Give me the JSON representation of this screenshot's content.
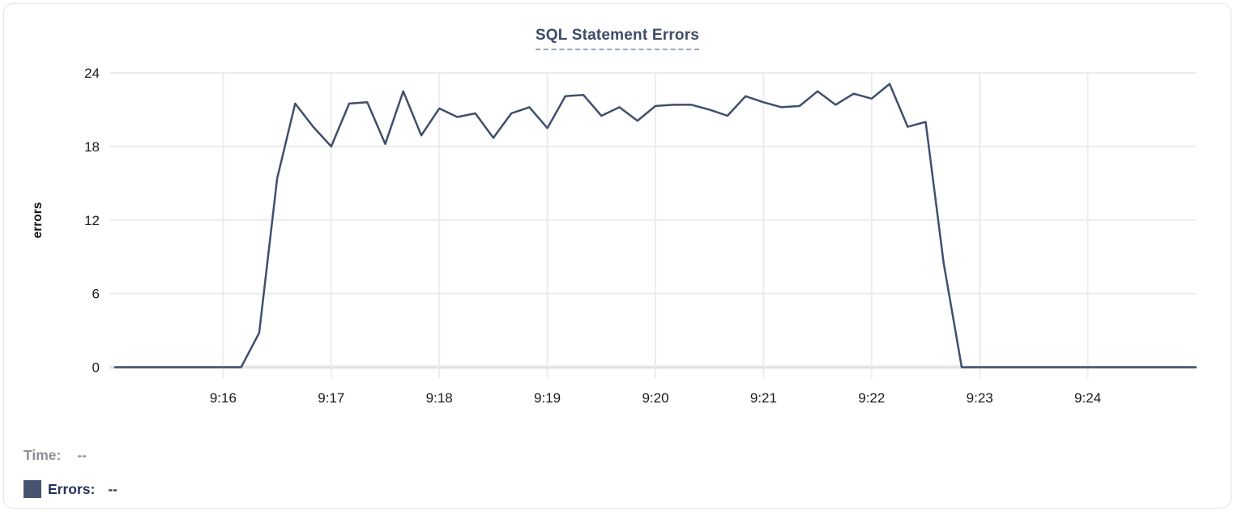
{
  "panel": {
    "background": "#ffffff",
    "border_color": "#e3e3e3"
  },
  "chart": {
    "title": "SQL Statement Errors",
    "colors": {
      "line": "#3f4f6e",
      "grid": "#ececec",
      "zero_axis": "#e4e4e4",
      "title_text": "#3d4c68",
      "title_underline": "#9aa5bb",
      "tick_label": "#1a1a1a",
      "legend_time_text": "#8c9196",
      "legend_errors_text": "#24335c",
      "legend_swatch": "#46556f"
    }
  },
  "chart_data": {
    "type": "line",
    "title": "SQL Statement Errors",
    "xlabel": "",
    "ylabel": "errors",
    "ylim": [
      0,
      24
    ],
    "yticks": [
      24,
      18,
      12,
      6,
      0
    ],
    "xticks": [
      "9:16",
      "9:17",
      "9:18",
      "9:19",
      "9:20",
      "9:21",
      "9:22",
      "9:23",
      "9:24"
    ],
    "x_range": [
      "9:15:00",
      "9:25:00"
    ],
    "grid": true,
    "legend_position": "bottom-left",
    "series": [
      {
        "name": "Errors",
        "color": "#3f4f6e",
        "x": [
          "9:15:00",
          "9:15:10",
          "9:15:20",
          "9:15:30",
          "9:15:40",
          "9:15:50",
          "9:16:00",
          "9:16:10",
          "9:16:20",
          "9:16:30",
          "9:16:40",
          "9:16:50",
          "9:17:00",
          "9:17:10",
          "9:17:20",
          "9:17:30",
          "9:17:40",
          "9:17:50",
          "9:18:00",
          "9:18:10",
          "9:18:20",
          "9:18:30",
          "9:18:40",
          "9:18:50",
          "9:19:00",
          "9:19:10",
          "9:19:20",
          "9:19:30",
          "9:19:40",
          "9:19:50",
          "9:20:00",
          "9:20:10",
          "9:20:20",
          "9:20:30",
          "9:20:40",
          "9:20:50",
          "9:21:00",
          "9:21:10",
          "9:21:20",
          "9:21:30",
          "9:21:40",
          "9:21:50",
          "9:22:00",
          "9:22:10",
          "9:22:20",
          "9:22:30",
          "9:22:40",
          "9:22:50",
          "9:23:00",
          "9:23:10",
          "9:23:20",
          "9:23:30",
          "9:23:40",
          "9:23:50",
          "9:24:00",
          "9:24:10",
          "9:24:20",
          "9:24:30",
          "9:24:40",
          "9:24:50",
          "9:25:00"
        ],
        "values": [
          0,
          0,
          0,
          0,
          0,
          0,
          0,
          0,
          2.8,
          15.4,
          21.5,
          19.6,
          18,
          21.5,
          21.6,
          18.2,
          22.5,
          18.9,
          21.1,
          20.4,
          20.7,
          18.7,
          20.7,
          21.2,
          19.5,
          22.1,
          22.2,
          20.5,
          21.2,
          20.1,
          21.3,
          21.4,
          21.4,
          21,
          20.5,
          22.1,
          21.6,
          21.2,
          21.3,
          22.5,
          21.4,
          22.3,
          21.9,
          23.1,
          19.6,
          20,
          8.5,
          0,
          0,
          0,
          0,
          0,
          0,
          0,
          0,
          0,
          0,
          0,
          0,
          0,
          0
        ]
      }
    ]
  },
  "tooltip": {
    "time_label": "Time:",
    "time_value": "--",
    "errors_label": "Errors:",
    "errors_value": "--"
  }
}
